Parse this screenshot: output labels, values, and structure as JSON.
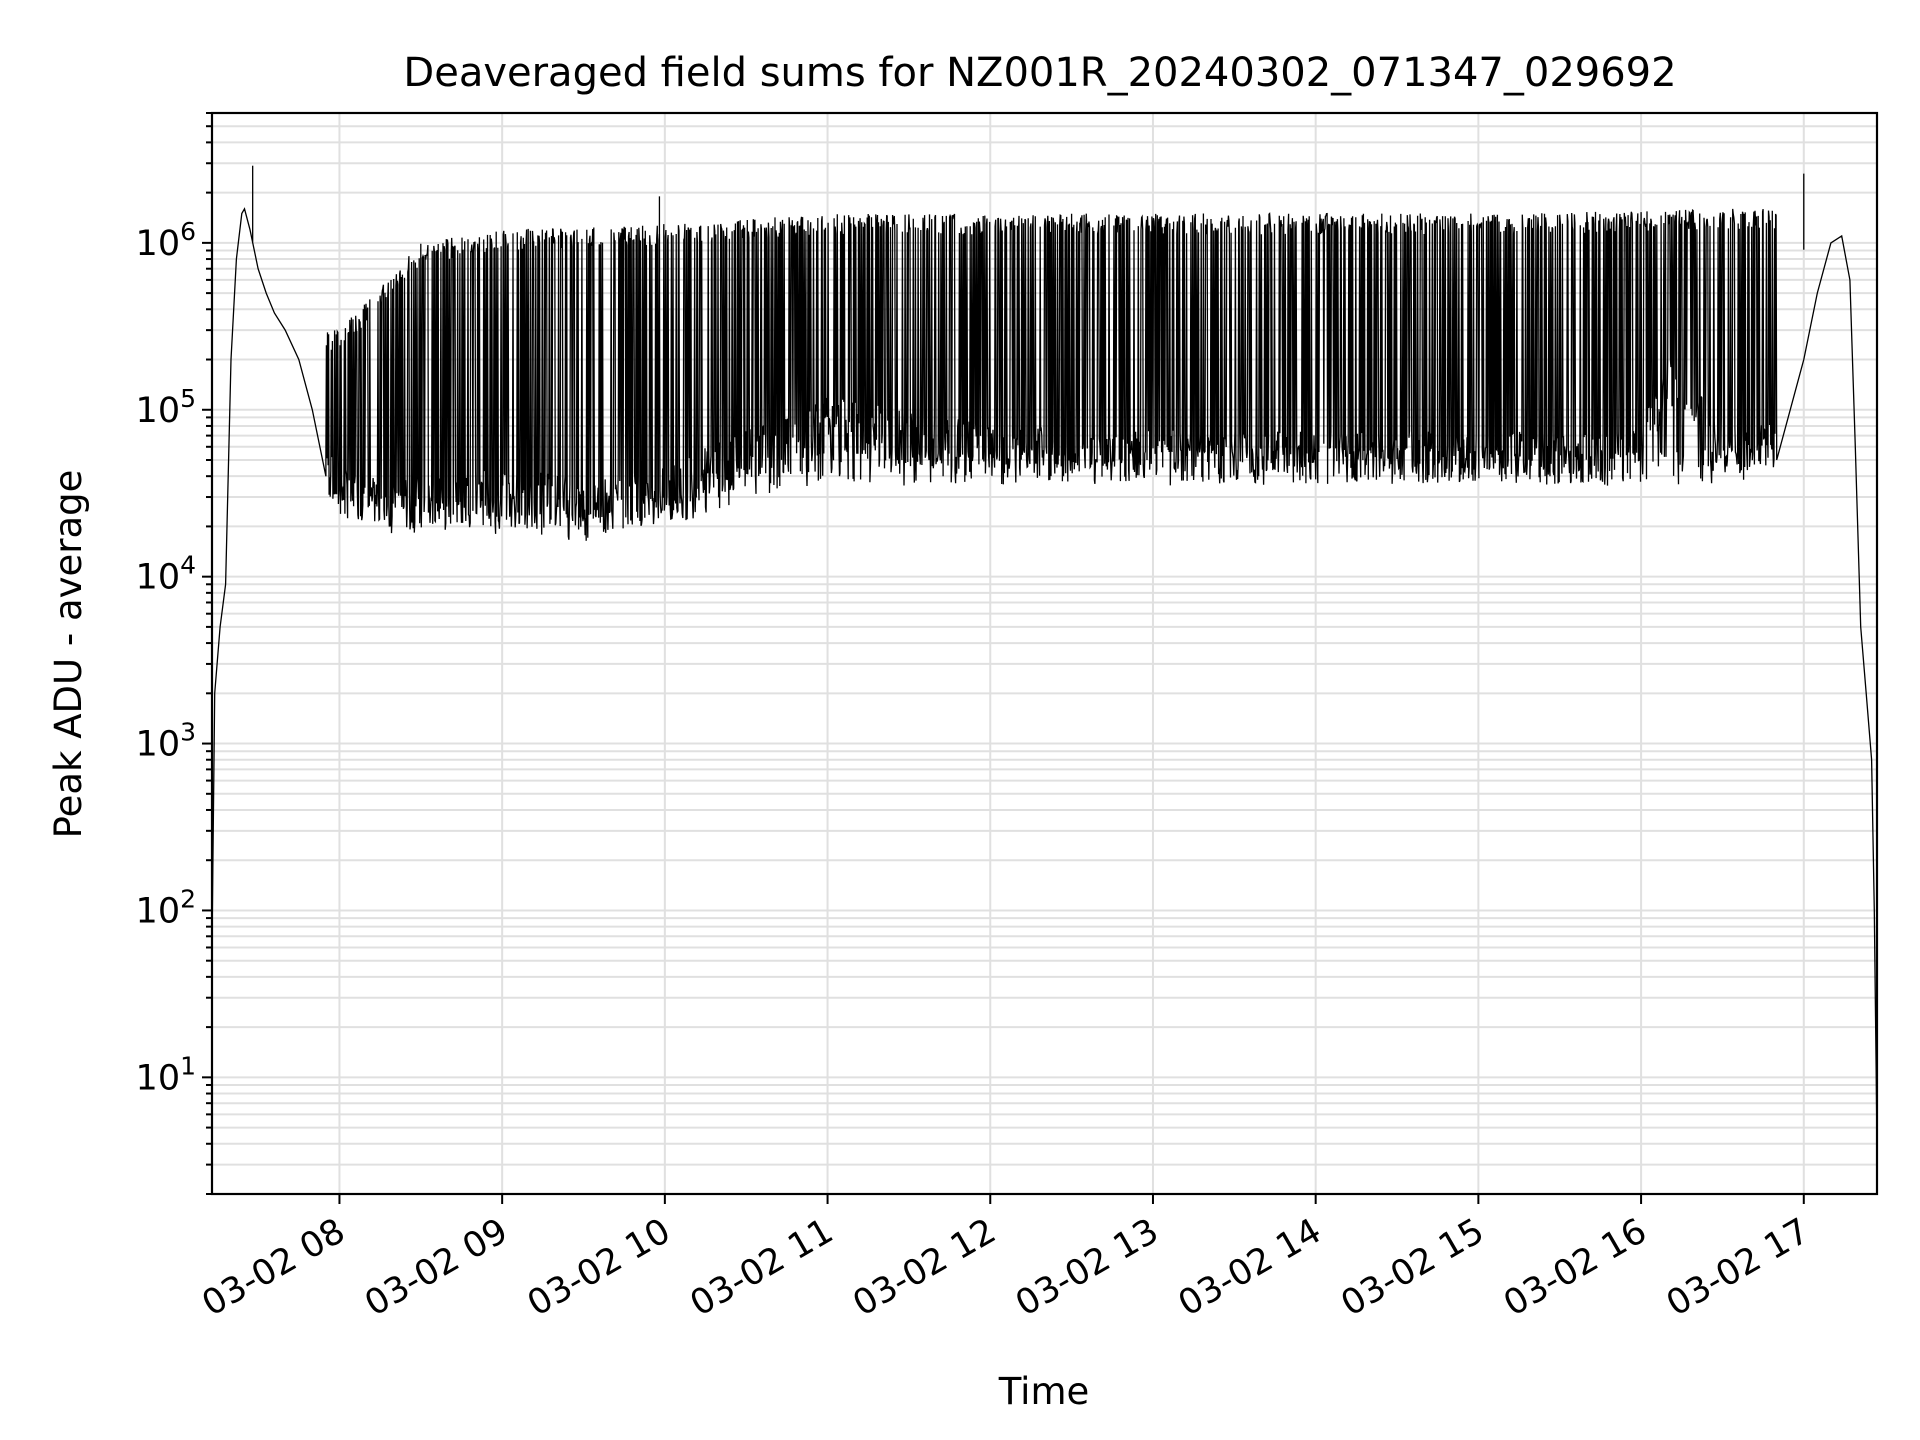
{
  "chart_data": {
    "type": "line",
    "title": "Deaveraged field sums for NZ001R_20240302_071347_029692",
    "xlabel": "Time",
    "ylabel": "Peak ADU - average",
    "yscale": "log",
    "ylim": [
      2,
      6000000
    ],
    "xlim": [
      "2024-03-02 07:13",
      "2024-03-02 17:27"
    ],
    "grid": true,
    "x_ticks": [
      {
        "value": "2024-03-02 08:00",
        "label": "03-02 08"
      },
      {
        "value": "2024-03-02 09:00",
        "label": "03-02 09"
      },
      {
        "value": "2024-03-02 10:00",
        "label": "03-02 10"
      },
      {
        "value": "2024-03-02 11:00",
        "label": "03-02 11"
      },
      {
        "value": "2024-03-02 12:00",
        "label": "03-02 12"
      },
      {
        "value": "2024-03-02 13:00",
        "label": "03-02 13"
      },
      {
        "value": "2024-03-02 14:00",
        "label": "03-02 14"
      },
      {
        "value": "2024-03-02 15:00",
        "label": "03-02 15"
      },
      {
        "value": "2024-03-02 16:00",
        "label": "03-02 16"
      },
      {
        "value": "2024-03-02 17:00",
        "label": "03-02 17"
      }
    ],
    "y_ticks": [
      {
        "value": 10,
        "base": "10",
        "exp": "1"
      },
      {
        "value": 100,
        "base": "10",
        "exp": "2"
      },
      {
        "value": 1000,
        "base": "10",
        "exp": "3"
      },
      {
        "value": 10000,
        "base": "10",
        "exp": "4"
      },
      {
        "value": 100000,
        "base": "10",
        "exp": "5"
      },
      {
        "value": 1000000,
        "base": "10",
        "exp": "6"
      }
    ],
    "series": [
      {
        "color": "#000000",
        "x": [
          "2024-03-02 07:13",
          "2024-03-02 07:14",
          "2024-03-02 07:16",
          "2024-03-02 07:18",
          "2024-03-02 07:20",
          "2024-03-02 07:22",
          "2024-03-02 07:24",
          "2024-03-02 07:25",
          "2024-03-02 07:27",
          "2024-03-02 07:30",
          "2024-03-02 07:33",
          "2024-03-02 07:36",
          "2024-03-02 07:40",
          "2024-03-02 07:45",
          "2024-03-02 07:50",
          "2024-03-02 07:55",
          "2024-03-02 08:00",
          "2024-03-02 08:10",
          "2024-03-02 08:20",
          "2024-03-02 08:30",
          "2024-03-02 08:45",
          "2024-03-02 09:00",
          "2024-03-02 09:15",
          "2024-03-02 09:30",
          "2024-03-02 09:45",
          "2024-03-02 10:00",
          "2024-03-02 10:15",
          "2024-03-02 10:30",
          "2024-03-02 10:45",
          "2024-03-02 11:00",
          "2024-03-02 11:30",
          "2024-03-02 12:00",
          "2024-03-02 12:30",
          "2024-03-02 13:00",
          "2024-03-02 13:30",
          "2024-03-02 14:00",
          "2024-03-02 14:30",
          "2024-03-02 15:00",
          "2024-03-02 15:30",
          "2024-03-02 16:00",
          "2024-03-02 16:10",
          "2024-03-02 16:20",
          "2024-03-02 16:30",
          "2024-03-02 16:40",
          "2024-03-02 16:50",
          "2024-03-02 17:00",
          "2024-03-02 17:05",
          "2024-03-02 17:10",
          "2024-03-02 17:14",
          "2024-03-02 17:17",
          "2024-03-02 17:19",
          "2024-03-02 17:21",
          "2024-03-02 17:23",
          "2024-03-02 17:25",
          "2024-03-02 17:26",
          "2024-03-02 17:27"
        ],
        "y": [
          60,
          2000,
          5000,
          9000,
          200000,
          800000,
          1500000,
          1600000,
          1200000,
          700000,
          500000,
          380000,
          300000,
          200000,
          100000,
          40000,
          30000,
          28000,
          25000,
          28000,
          30000,
          28000,
          30000,
          25000,
          28000,
          30000,
          40000,
          50000,
          65000,
          80000,
          65000,
          55000,
          50000,
          50000,
          50000,
          50000,
          50000,
          52000,
          50000,
          55000,
          150000,
          100000,
          60000,
          50000,
          60000,
          200000,
          500000,
          1000000,
          1100000,
          600000,
          60000,
          5000,
          2000,
          800,
          100,
          4
        ]
      }
    ],
    "envelope": {
      "lower": {
        "x": [
          "2024-03-02 07:40",
          "2024-03-02 08:00",
          "2024-03-02 08:30",
          "2024-03-02 09:00",
          "2024-03-02 09:30",
          "2024-03-02 10:00",
          "2024-03-02 10:30",
          "2024-03-02 11:00",
          "2024-03-02 12:00",
          "2024-03-02 13:00",
          "2024-03-02 14:00",
          "2024-03-02 15:00",
          "2024-03-02 16:00",
          "2024-03-02 16:30",
          "2024-03-02 16:50"
        ],
        "y": [
          250000,
          25000,
          20000,
          20000,
          18000,
          22000,
          30000,
          40000,
          38000,
          40000,
          40000,
          40000,
          38000,
          40000,
          50000
        ]
      },
      "upper": {
        "x": [
          "2024-03-02 08:00",
          "2024-03-02 08:30",
          "2024-03-02 09:00",
          "2024-03-02 09:30",
          "2024-03-02 10:00",
          "2024-03-02 10:30",
          "2024-03-02 11:00",
          "2024-03-02 12:00",
          "2024-03-02 13:00",
          "2024-03-02 14:00",
          "2024-03-02 15:00",
          "2024-03-02 16:00",
          "2024-03-02 16:30",
          "2024-03-02 16:50"
        ],
        "y": [
          300000,
          1000000,
          1200000,
          1250000,
          1300000,
          1400000,
          1500000,
          1500000,
          1500000,
          1500000,
          1500000,
          1550000,
          1600000,
          1600000
        ]
      }
    },
    "spikes": [
      {
        "x": "2024-03-02 07:28",
        "y": 2900000
      },
      {
        "x": "2024-03-02 09:58",
        "y": 1900000
      },
      {
        "x": "2024-03-02 17:00",
        "y": 2600000
      }
    ]
  }
}
